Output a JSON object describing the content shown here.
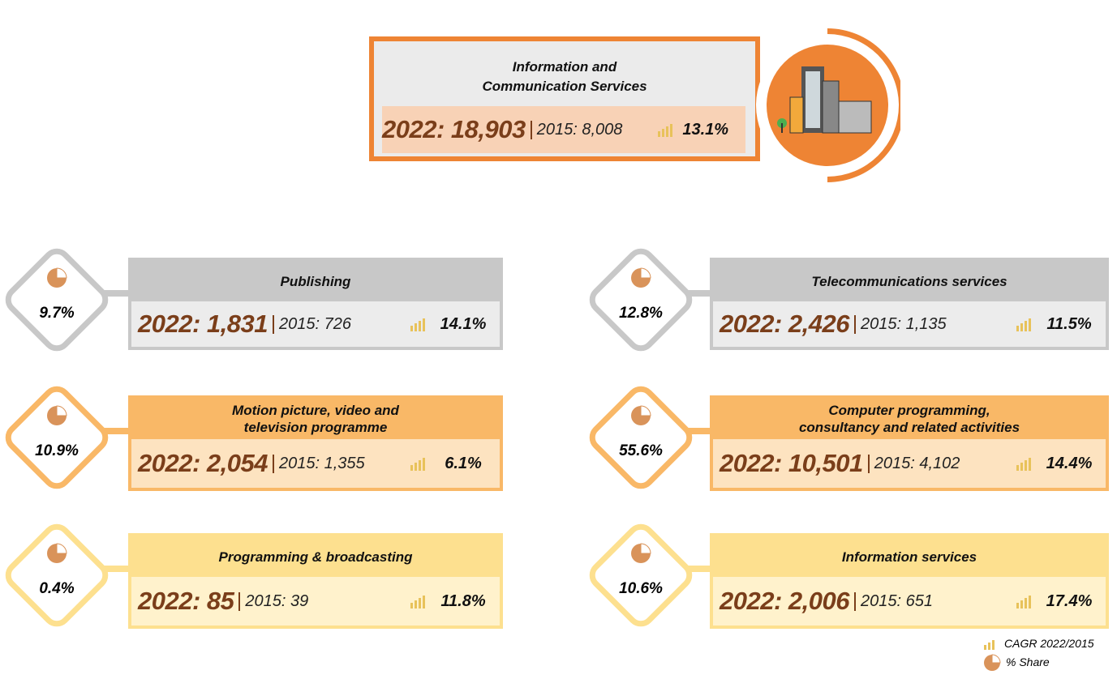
{
  "header": {
    "title": "Information and\nCommunication Services",
    "value_2022": "2022: 18,903",
    "value_2015": "2015: 8,008",
    "cagr": "13.1%"
  },
  "cards": [
    {
      "title": "Publishing",
      "share": "9.7%",
      "value_2022": "2022: 1,831",
      "value_2015": "2015: 726",
      "cagr": "14.1%",
      "color": "#c8c8c8",
      "fill": "#ececec"
    },
    {
      "title": "Telecommunications services",
      "share": "12.8%",
      "value_2022": "2022: 2,426",
      "value_2015": "2015: 1,135",
      "cagr": "11.5%",
      "color": "#c8c8c8",
      "fill": "#ececec"
    },
    {
      "title": "Motion picture, video and\ntelevision programme",
      "share": "10.9%",
      "value_2022": "2022: 2,054",
      "value_2015": "2015: 1,355",
      "cagr": "6.1%",
      "color": "#f9b867",
      "fill": "#fde3c0"
    },
    {
      "title": "Computer programming,\nconsultancy and related activities",
      "share": "55.6%",
      "value_2022": "2022: 10,501",
      "value_2015": "2015: 4,102",
      "cagr": "14.4%",
      "color": "#f9b867",
      "fill": "#fde3c0"
    },
    {
      "title": "Programming & broadcasting",
      "share": "0.4%",
      "value_2022": "2022: 85",
      "value_2015": "2015: 39",
      "cagr": "11.8%",
      "color": "#fde08f",
      "fill": "#fff2cc"
    },
    {
      "title": "Information services",
      "share": "10.6%",
      "value_2022": "2022: 2,006",
      "value_2015": "2015: 651",
      "cagr": "17.4%",
      "color": "#fde08f",
      "fill": "#fff2cc"
    }
  ],
  "legend": {
    "cagr": "CAGR 2022/2015",
    "share": "% Share"
  }
}
